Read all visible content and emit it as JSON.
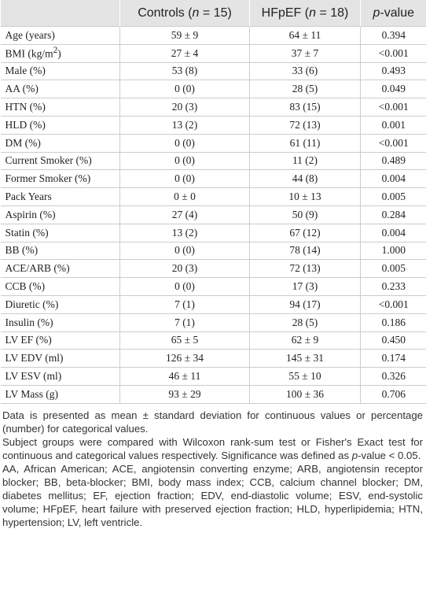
{
  "table": {
    "header": [
      [],
      [
        {
          "text": "Controls ("
        },
        {
          "text": "n",
          "italic": true
        },
        {
          "text": " = 15)"
        }
      ],
      [
        {
          "text": "HFpEF ("
        },
        {
          "text": "n",
          "italic": true
        },
        {
          "text": " = 18)"
        }
      ],
      [
        {
          "text": "p",
          "italic": true
        },
        {
          "text": "-value"
        }
      ]
    ],
    "rows": [
      [
        [
          {
            "text": "Age (years)"
          }
        ],
        "59 ± 9",
        "64 ± 11",
        "0.394"
      ],
      [
        [
          {
            "text": "BMI (kg/m"
          },
          {
            "text": "2",
            "sup": true
          },
          {
            "text": ")"
          }
        ],
        "27 ± 4",
        "37 ± 7",
        "<0.001"
      ],
      [
        [
          {
            "text": "Male (%)"
          }
        ],
        "53 (8)",
        "33 (6)",
        "0.493"
      ],
      [
        [
          {
            "text": "AA (%)"
          }
        ],
        "0 (0)",
        "28 (5)",
        "0.049"
      ],
      [
        [
          {
            "text": "HTN (%)"
          }
        ],
        "20 (3)",
        "83 (15)",
        "<0.001"
      ],
      [
        [
          {
            "text": "HLD (%)"
          }
        ],
        "13 (2)",
        "72 (13)",
        "0.001"
      ],
      [
        [
          {
            "text": "DM (%)"
          }
        ],
        "0 (0)",
        "61 (11)",
        "<0.001"
      ],
      [
        [
          {
            "text": "Current Smoker (%)"
          }
        ],
        "0 (0)",
        "11 (2)",
        "0.489"
      ],
      [
        [
          {
            "text": "Former Smoker (%)"
          }
        ],
        "0 (0)",
        "44 (8)",
        "0.004"
      ],
      [
        [
          {
            "text": "Pack Years"
          }
        ],
        "0 ± 0",
        "10 ± 13",
        "0.005"
      ],
      [
        [
          {
            "text": "Aspirin (%)"
          }
        ],
        "27 (4)",
        "50 (9)",
        "0.284"
      ],
      [
        [
          {
            "text": "Statin (%)"
          }
        ],
        "13 (2)",
        "67 (12)",
        "0.004"
      ],
      [
        [
          {
            "text": "BB (%)"
          }
        ],
        "0 (0)",
        "78 (14)",
        "1.000"
      ],
      [
        [
          {
            "text": "ACE/ARB (%)"
          }
        ],
        "20 (3)",
        "72 (13)",
        "0.005"
      ],
      [
        [
          {
            "text": "CCB (%)"
          }
        ],
        "0 (0)",
        "17 (3)",
        "0.233"
      ],
      [
        [
          {
            "text": "Diuretic (%)"
          }
        ],
        "7 (1)",
        "94 (17)",
        "<0.001"
      ],
      [
        [
          {
            "text": "Insulin (%)"
          }
        ],
        "7 (1)",
        "28 (5)",
        "0.186"
      ],
      [
        [
          {
            "text": "LV EF (%)"
          }
        ],
        "65 ± 5",
        "62 ± 9",
        "0.450"
      ],
      [
        [
          {
            "text": "LV EDV (ml)"
          }
        ],
        "126 ± 34",
        "145 ± 31",
        "0.174"
      ],
      [
        [
          {
            "text": "LV ESV (ml)"
          }
        ],
        "46 ± 11",
        "55 ± 10",
        "0.326"
      ],
      [
        [
          {
            "text": "LV Mass (g)"
          }
        ],
        "93 ± 29",
        "100 ± 36",
        "0.706"
      ]
    ]
  },
  "footnotes": [
    [
      {
        "text": "Data is presented as mean ± standard deviation for continuous values or percentage (number) for categorical values."
      }
    ],
    [
      {
        "text": "Subject groups were compared with Wilcoxon rank-sum test or Fisher's Exact test for continuous and categorical values respectively. Significance was defined as "
      },
      {
        "text": "p",
        "italic": true
      },
      {
        "text": "-value < 0.05."
      }
    ],
    [
      {
        "text": "AA, African American; ACE, angiotensin converting enzyme; ARB, angiotensin receptor blocker; BB, beta-blocker; BMI, body mass index; CCB, calcium channel blocker; DM, diabetes mellitus; EF, ejection fraction; EDV, end-diastolic volume; ESV, end-systolic volume; HFpEF, heart failure with preserved ejection fraction; HLD, hyperlipidemia; HTN, hypertension; LV, left ventricle."
      }
    ]
  ]
}
